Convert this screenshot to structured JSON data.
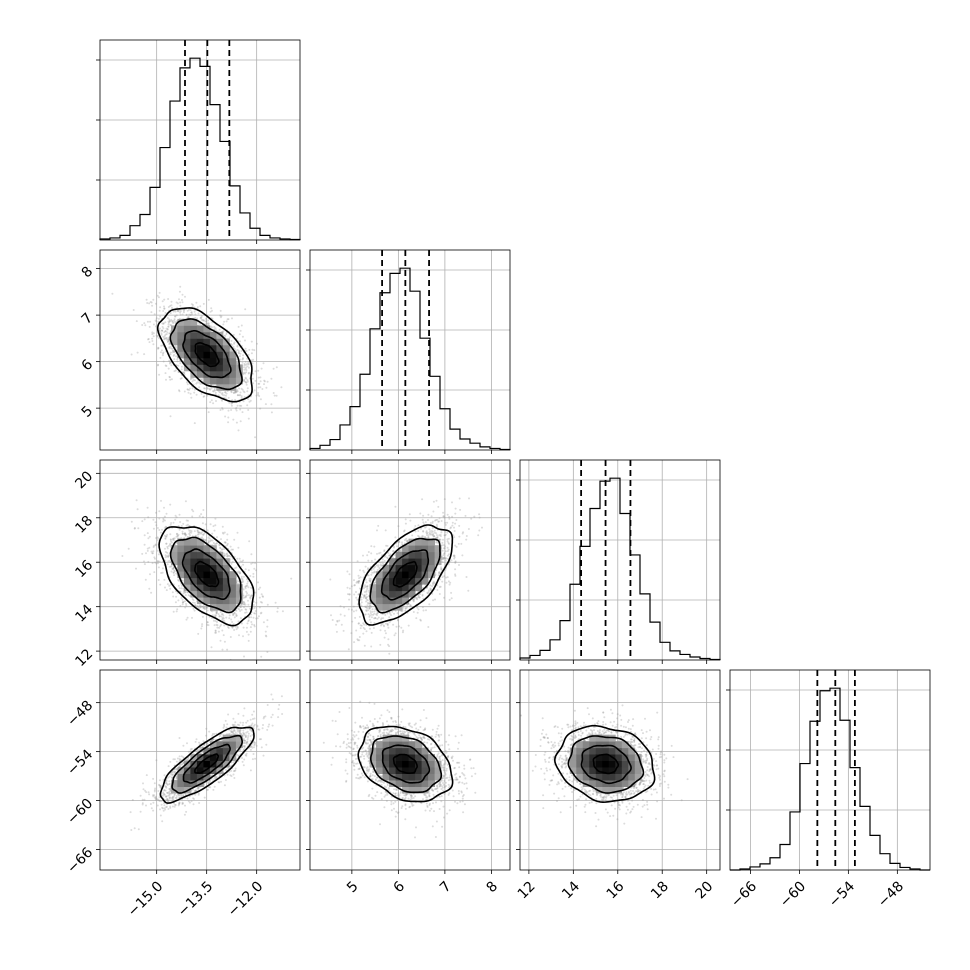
{
  "figure": {
    "type": "corner-plot",
    "grid": true
  },
  "colors": {
    "hist_line": "#000000",
    "quantile_line": "#000000",
    "scatter_point": "#9a9a9a",
    "density_max": "#000000",
    "grid": "#b0b0b0",
    "background": "#ffffff"
  },
  "chart_data": {
    "type": "corner",
    "parameters": [
      {
        "id": "p1",
        "range": [
          -16.7,
          -10.7
        ],
        "ticks": [
          -15.0,
          -13.5,
          -12.0
        ],
        "tick_labels": [
          "−15.0",
          "−13.5",
          "−12.0"
        ],
        "mean": -13.5,
        "std": 0.7,
        "quantiles": [
          -14.15,
          -13.48,
          -12.82
        ],
        "histogram": {
          "bins": [
            -16.7,
            -16.4,
            -16.1,
            -15.8,
            -15.5,
            -15.2,
            -14.9,
            -14.6,
            -14.3,
            -14.0,
            -13.7,
            -13.4,
            -13.1,
            -12.8,
            -12.5,
            -12.2,
            -11.9,
            -11.6,
            -11.3,
            -11.0,
            -10.7
          ],
          "counts": [
            2,
            4,
            9,
            28,
            50,
            103,
            181,
            272,
            337,
            356,
            340,
            265,
            193,
            106,
            53,
            23,
            9,
            4,
            2,
            1
          ]
        }
      },
      {
        "id": "p2",
        "range": [
          4.1,
          8.4
        ],
        "ticks": [
          5,
          6,
          7,
          8
        ],
        "tick_labels": [
          "5",
          "6",
          "7",
          "8"
        ],
        "mean": 6.15,
        "std": 0.5,
        "quantiles": [
          5.65,
          6.15,
          6.66
        ],
        "histogram": {
          "bins": [
            4.1,
            4.315,
            4.53,
            4.745,
            4.96,
            5.175,
            5.39,
            5.605,
            5.82,
            6.035,
            6.25,
            6.465,
            6.68,
            6.895,
            7.11,
            7.325,
            7.54,
            7.755,
            7.97,
            8.185,
            8.4
          ],
          "counts": [
            3,
            9,
            20,
            48,
            83,
            145,
            232,
            301,
            338,
            348,
            304,
            214,
            141,
            79,
            40,
            21,
            13,
            6,
            3,
            1
          ]
        }
      },
      {
        "id": "p3",
        "range": [
          11.6,
          20.6
        ],
        "ticks": [
          12,
          14,
          16,
          18,
          20
        ],
        "tick_labels": [
          "12",
          "14",
          "16",
          "18",
          "20"
        ],
        "mean": 15.45,
        "std": 1.1,
        "quantiles": [
          14.35,
          15.45,
          16.57
        ],
        "histogram": {
          "bins": [
            11.6,
            12.05,
            12.5,
            12.95,
            13.4,
            13.85,
            14.3,
            14.75,
            15.2,
            15.65,
            16.1,
            16.55,
            17.0,
            17.45,
            17.9,
            18.35,
            18.8,
            19.25,
            19.7,
            20.15,
            20.6
          ],
          "counts": [
            4,
            9,
            19,
            40,
            78,
            150,
            225,
            300,
            354,
            360,
            290,
            208,
            131,
            75,
            35,
            18,
            11,
            6,
            3,
            1
          ]
        }
      },
      {
        "id": "p4",
        "range": [
          -68.5,
          -44.0
        ],
        "ticks": [
          -66,
          -60,
          -54,
          -48
        ],
        "tick_labels": [
          "−66",
          "−60",
          "−54",
          "−48"
        ],
        "mean": -55.5,
        "std": 2.3,
        "quantiles": [
          -57.8,
          -55.6,
          -53.2
        ],
        "histogram": {
          "bins": [
            -68.5,
            -67.275,
            -66.05,
            -64.825,
            -63.6,
            -62.375,
            -61.15,
            -59.925,
            -58.7,
            -57.475,
            -56.25,
            -55.025,
            -53.8,
            -52.575,
            -51.35,
            -50.125,
            -48.9,
            -47.675,
            -46.45,
            -45.225,
            -44.0
          ],
          "counts": [
            0,
            2,
            6,
            12,
            24,
            50,
            114,
            209,
            292,
            352,
            357,
            294,
            201,
            125,
            68,
            32,
            13,
            5,
            2,
            0
          ]
        }
      }
    ],
    "correlations": [
      {
        "pair": [
          "p2",
          "p1"
        ],
        "rho": -0.55
      },
      {
        "pair": [
          "p3",
          "p1"
        ],
        "rho": -0.55
      },
      {
        "pair": [
          "p3",
          "p2"
        ],
        "rho": 0.6
      },
      {
        "pair": [
          "p4",
          "p1"
        ],
        "rho": 0.8
      },
      {
        "pair": [
          "p4",
          "p2"
        ],
        "rho": -0.3
      },
      {
        "pair": [
          "p4",
          "p3"
        ],
        "rho": -0.15
      }
    ],
    "contour_levels_sigma": [
      0.5,
      1.0,
      1.5,
      2.0
    ],
    "scatter_points_per_panel": 2200
  }
}
